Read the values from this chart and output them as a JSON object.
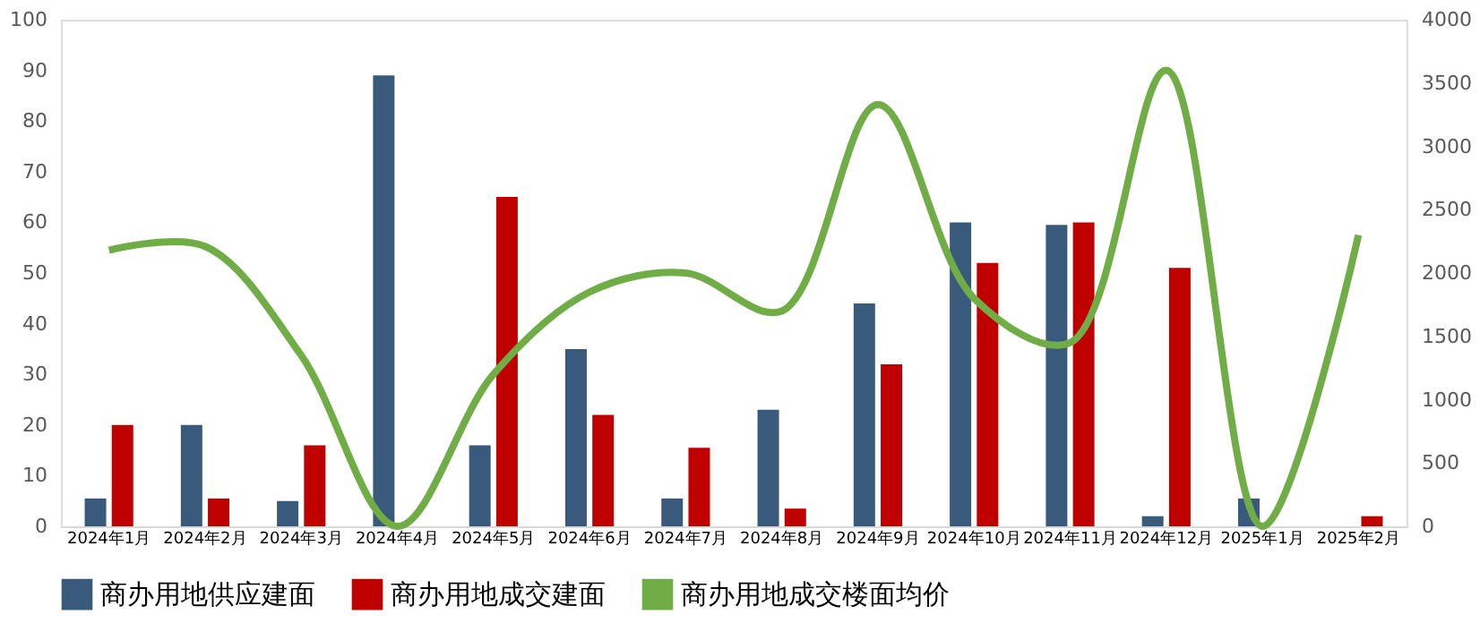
{
  "chart_data": {
    "type": "bar",
    "categories": [
      "2024年1月",
      "2024年2月",
      "2024年3月",
      "2024年4月",
      "2024年5月",
      "2024年6月",
      "2024年7月",
      "2024年8月",
      "2024年9月",
      "2024年10月",
      "2024年11月",
      "2024年12月",
      "2025年1月",
      "2025年2月"
    ],
    "series": [
      {
        "name": "商办用地供应建面",
        "color": "#3a5a7c",
        "values": [
          5.5,
          20,
          5,
          89,
          16,
          35,
          5.5,
          23,
          44,
          60,
          59.5,
          2,
          5.5,
          0
        ]
      },
      {
        "name": "商办用地成交建面",
        "color": "#c00000",
        "values": [
          20,
          5.5,
          16,
          0,
          65,
          22,
          15.5,
          3.5,
          32,
          52,
          60,
          51,
          0,
          2
        ]
      },
      {
        "name": "商办用地成交楼面均价",
        "color": "#70ad47",
        "type": "line",
        "axis": "y2",
        "values": [
          2180,
          2210,
          1350,
          0,
          1200,
          1850,
          2000,
          1700,
          3330,
          1800,
          1450,
          3600,
          0,
          2300
        ]
      }
    ],
    "ylim": [
      0,
      100
    ],
    "yticks": [
      0,
      10,
      20,
      30,
      40,
      50,
      60,
      70,
      80,
      90,
      100
    ],
    "y2lim": [
      0,
      4000
    ],
    "y2ticks": [
      0,
      500,
      1000,
      1500,
      2000,
      2500,
      3000,
      3500,
      4000
    ],
    "grid": false,
    "legend": "bottom"
  }
}
